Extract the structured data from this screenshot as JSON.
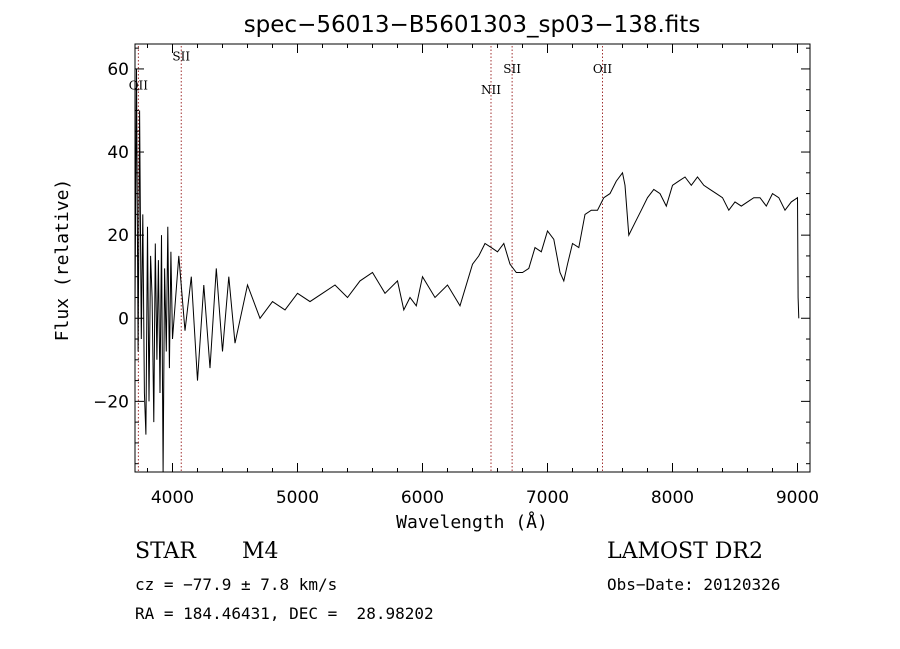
{
  "chart_data": {
    "type": "line",
    "title": "spec−56013−B5601303_sp03−138.fits",
    "xlabel": "Wavelength (Å)",
    "ylabel": "Flux (relative)",
    "xlim": [
      3700,
      9100
    ],
    "ylim": [
      -37,
      66
    ],
    "xticks": [
      4000,
      5000,
      6000,
      7000,
      8000,
      9000
    ],
    "yticks": [
      -20,
      0,
      20,
      40,
      60
    ],
    "xtick_labels": [
      "4000",
      "5000",
      "6000",
      "7000",
      "8000",
      "9000"
    ],
    "ytick_labels": [
      "−20",
      "0",
      "20",
      "40",
      "60"
    ],
    "series": [
      {
        "x": [
          3700,
          3712,
          3725,
          3737,
          3750,
          3762,
          3775,
          3787,
          3800,
          3812,
          3825,
          3837,
          3850,
          3862,
          3875,
          3887,
          3900,
          3912,
          3925,
          3937,
          3950,
          3962,
          3975,
          3987,
          4000,
          4050,
          4100,
          4150,
          4200,
          4250,
          4300,
          4350,
          4400,
          4450,
          4500,
          4600,
          4700,
          4800,
          4900,
          5000,
          5100,
          5200,
          5300,
          5400,
          5500,
          5600,
          5700,
          5800,
          5850,
          5900,
          5950,
          6000,
          6100,
          6200,
          6300,
          6400,
          6450,
          6500,
          6550,
          6600,
          6650,
          6700,
          6750,
          6800,
          6850,
          6900,
          6950,
          7000,
          7050,
          7100,
          7130,
          7160,
          7200,
          7250,
          7300,
          7350,
          7400,
          7450,
          7500,
          7550,
          7600,
          7620,
          7650,
          7700,
          7750,
          7800,
          7850,
          7900,
          7950,
          8000,
          8050,
          8100,
          8150,
          8200,
          8250,
          8300,
          8350,
          8400,
          8450,
          8500,
          8550,
          8600,
          8650,
          8700,
          8750,
          8800,
          8850,
          8900,
          8950,
          9000,
          9005,
          9010
        ],
        "y": [
          2,
          60,
          -8,
          50,
          -5,
          25,
          -18,
          -28,
          22,
          -20,
          15,
          5,
          -25,
          18,
          -10,
          14,
          -18,
          20,
          -37,
          12,
          -8,
          22,
          -12,
          16,
          -5,
          15,
          -3,
          10,
          -15,
          8,
          -12,
          12,
          -8,
          10,
          -6,
          8,
          0,
          4,
          2,
          6,
          4,
          6,
          8,
          5,
          9,
          11,
          6,
          9,
          2,
          5,
          3,
          10,
          5,
          8,
          3,
          13,
          15,
          18,
          17,
          16,
          18,
          13,
          11,
          11,
          12,
          17,
          16,
          21,
          19,
          11,
          9,
          13,
          18,
          17,
          25,
          26,
          26,
          29,
          30,
          33,
          35,
          32,
          20,
          23,
          26,
          29,
          31,
          30,
          27,
          32,
          33,
          34,
          32,
          34,
          32,
          31,
          30,
          29,
          26,
          28,
          27,
          28,
          29,
          29,
          27,
          30,
          29,
          26,
          28,
          29,
          5,
          0
        ]
      }
    ],
    "lines": [
      {
        "label": "OII",
        "wavelength": 3727,
        "y_label": 55
      },
      {
        "label": "SII",
        "wavelength": 4070,
        "y_label": 62
      },
      {
        "label": "NII",
        "wavelength": 6548,
        "y_label": 54
      },
      {
        "label": "SII",
        "wavelength": 6717,
        "y_label": 59
      },
      {
        "label": "OII",
        "wavelength": 7440,
        "y_label": 59
      }
    ],
    "grid": false
  },
  "info": {
    "class_label": "STAR",
    "subclass": "M4",
    "cz": "cz = −77.9 ± 7.8 km/s",
    "coords": "RA = 184.46431, DEC =  28.98202",
    "survey": "LAMOST DR2",
    "obs_date": "Obs−Date: 20120326"
  }
}
